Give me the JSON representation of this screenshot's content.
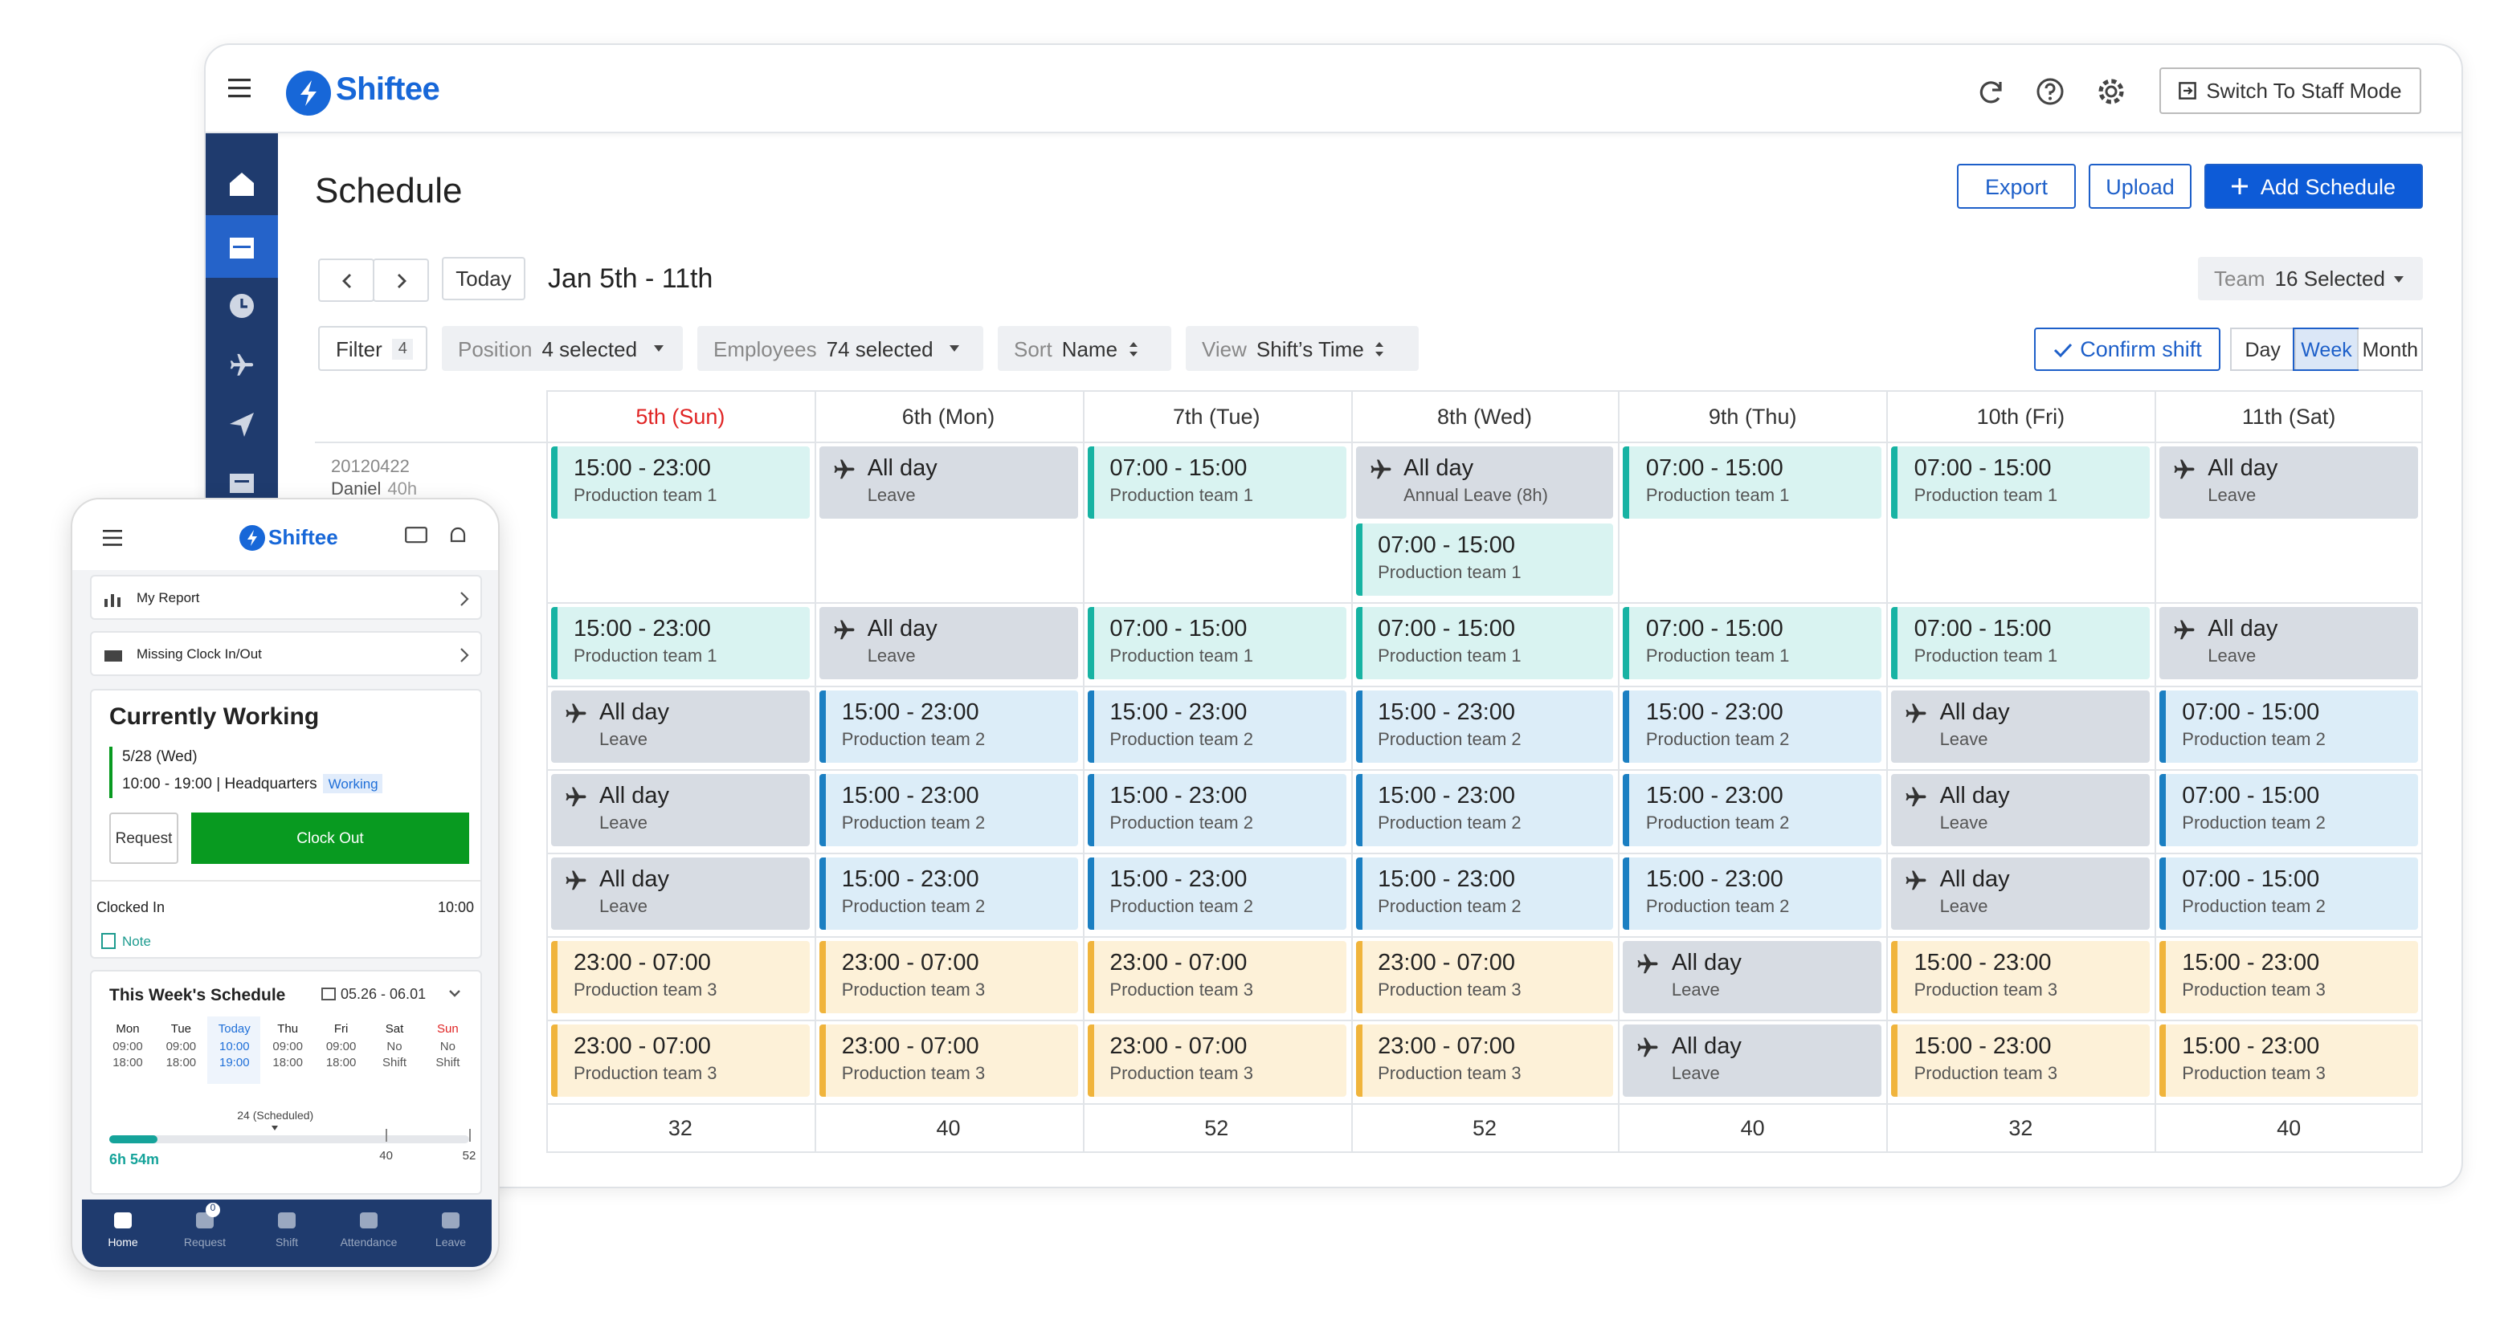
{
  "header": {
    "logo": "Shiftee",
    "switch_mode": "Switch To Staff Mode"
  },
  "page": {
    "title": "Schedule",
    "export": "Export",
    "upload": "Upload",
    "add": "Add Schedule",
    "today": "Today",
    "range": "Jan 5th - 11th",
    "team_label": "Team",
    "team_value": "16 Selected",
    "filters": [
      {
        "label": "Filter",
        "value": "4"
      },
      {
        "label": "Position",
        "value": "4 selected"
      },
      {
        "label": "Employees",
        "value": "74 selected"
      },
      {
        "label": "Sort",
        "value": "Name"
      },
      {
        "label": "View",
        "value": "Shift’s Time"
      }
    ],
    "confirm": "Confirm shift",
    "views": [
      "Day",
      "Week",
      "Month"
    ]
  },
  "schedule": {
    "days": [
      "5th (Sun)",
      "6th (Mon)",
      "7th (Tue)",
      "8th (Wed)",
      "9th (Thu)",
      "10th (Fri)",
      "11th (Sat)"
    ],
    "employee": {
      "id": "20120422",
      "name": "Daniel",
      "hours": "40h"
    },
    "rows": [
      [
        [
          {
            "time": "15:00 - 23:00",
            "label": "Production team 1",
            "color": "#17b3a3",
            "background": "#d9f3f1"
          }
        ],
        [
          {
            "time": "All day",
            "label": "Leave",
            "background": "#d7dce3"
          }
        ],
        [
          {
            "time": "07:00 - 15:00",
            "label": "Production team 1",
            "color": "#17b3a3",
            "background": "#d9f3f1"
          }
        ],
        [
          {
            "time": "All day",
            "label": "Annual Leave (8h)",
            "background": "#d7dce3"
          },
          {
            "time": "07:00 - 15:00",
            "label": "Production team 1",
            "color": "#17b3a3",
            "background": "#d9f3f1"
          }
        ],
        [
          {
            "time": "07:00 - 15:00",
            "label": "Production team 1",
            "color": "#17b3a3",
            "background": "#d9f3f1"
          }
        ],
        [
          {
            "time": "07:00 - 15:00",
            "label": "Production team 1",
            "color": "#17b3a3",
            "background": "#d9f3f1"
          }
        ],
        [
          {
            "time": "All day",
            "label": "Leave",
            "background": "#d7dce3"
          }
        ]
      ],
      [
        [
          {
            "time": "15:00 - 23:00",
            "label": "Production team 1",
            "color": "#17b3a3",
            "background": "#d9f3f1"
          }
        ],
        [
          {
            "time": "All day",
            "label": "Leave",
            "background": "#d7dce3"
          }
        ],
        [
          {
            "time": "07:00 - 15:00",
            "label": "Production team 1",
            "color": "#17b3a3",
            "background": "#d9f3f1"
          }
        ],
        [
          {
            "time": "07:00 - 15:00",
            "label": "Production team 1",
            "color": "#17b3a3",
            "background": "#d9f3f1"
          }
        ],
        [
          {
            "time": "07:00 - 15:00",
            "label": "Production team 1",
            "color": "#17b3a3",
            "background": "#d9f3f1"
          }
        ],
        [
          {
            "time": "07:00 - 15:00",
            "label": "Production team 1",
            "color": "#17b3a3",
            "background": "#d9f3f1"
          }
        ],
        [
          {
            "time": "All day",
            "label": "Leave",
            "background": "#d7dce3"
          }
        ]
      ],
      [
        [
          {
            "time": "All day",
            "label": "Leave",
            "background": "#d7dce3"
          }
        ],
        [
          {
            "time": "15:00 - 23:00",
            "label": "Production team 2",
            "color": "#1b7fc2",
            "background": "#dcedf8"
          }
        ],
        [
          {
            "time": "15:00 - 23:00",
            "label": "Production team 2",
            "color": "#1b7fc2",
            "background": "#dcedf8"
          }
        ],
        [
          {
            "time": "15:00 - 23:00",
            "label": "Production team 2",
            "color": "#1b7fc2",
            "background": "#dcedf8"
          }
        ],
        [
          {
            "time": "15:00 - 23:00",
            "label": "Production team 2",
            "color": "#1b7fc2",
            "background": "#dcedf8"
          }
        ],
        [
          {
            "time": "All day",
            "label": "Leave",
            "background": "#d7dce3"
          }
        ],
        [
          {
            "time": "07:00 - 15:00",
            "label": "Production team 2",
            "color": "#1b7fc2",
            "background": "#dcedf8"
          }
        ]
      ],
      [
        [
          {
            "time": "All day",
            "label": "Leave",
            "background": "#d7dce3"
          }
        ],
        [
          {
            "time": "15:00 - 23:00",
            "label": "Production team 2",
            "color": "#1b7fc2",
            "background": "#dcedf8"
          }
        ],
        [
          {
            "time": "15:00 - 23:00",
            "label": "Production team 2",
            "color": "#1b7fc2",
            "background": "#dcedf8"
          }
        ],
        [
          {
            "time": "15:00 - 23:00",
            "label": "Production team 2",
            "color": "#1b7fc2",
            "background": "#dcedf8"
          }
        ],
        [
          {
            "time": "15:00 - 23:00",
            "label": "Production team 2",
            "color": "#1b7fc2",
            "background": "#dcedf8"
          }
        ],
        [
          {
            "time": "All day",
            "label": "Leave",
            "background": "#d7dce3"
          }
        ],
        [
          {
            "time": "07:00 - 15:00",
            "label": "Production team 2",
            "color": "#1b7fc2",
            "background": "#dcedf8"
          }
        ]
      ],
      [
        [
          {
            "time": "All day",
            "label": "Leave",
            "background": "#d7dce3"
          }
        ],
        [
          {
            "time": "15:00 - 23:00",
            "label": "Production team 2",
            "color": "#1b7fc2",
            "background": "#dcedf8"
          }
        ],
        [
          {
            "time": "15:00 - 23:00",
            "label": "Production team 2",
            "color": "#1b7fc2",
            "background": "#dcedf8"
          }
        ],
        [
          {
            "time": "15:00 - 23:00",
            "label": "Production team 2",
            "color": "#1b7fc2",
            "background": "#dcedf8"
          }
        ],
        [
          {
            "time": "15:00 - 23:00",
            "label": "Production team 2",
            "color": "#1b7fc2",
            "background": "#dcedf8"
          }
        ],
        [
          {
            "time": "All day",
            "label": "Leave",
            "background": "#d7dce3"
          }
        ],
        [
          {
            "time": "07:00 - 15:00",
            "label": "Production team 2",
            "color": "#1b7fc2",
            "background": "#dcedf8"
          }
        ]
      ],
      [
        [
          {
            "time": "23:00 - 07:00",
            "label": "Production team 3",
            "color": "#f0b43c",
            "background": "#fdf1d8"
          }
        ],
        [
          {
            "time": "23:00 - 07:00",
            "label": "Production team 3",
            "color": "#f0b43c",
            "background": "#fdf1d8"
          }
        ],
        [
          {
            "time": "23:00 - 07:00",
            "label": "Production team 3",
            "color": "#f0b43c",
            "background": "#fdf1d8"
          }
        ],
        [
          {
            "time": "23:00 - 07:00",
            "label": "Production team 3",
            "color": "#f0b43c",
            "background": "#fdf1d8"
          }
        ],
        [
          {
            "time": "All day",
            "label": "Leave",
            "background": "#d7dce3"
          }
        ],
        [
          {
            "time": "15:00 - 23:00",
            "label": "Production team 3",
            "color": "#f0b43c",
            "background": "#fdf1d8"
          }
        ],
        [
          {
            "time": "15:00 - 23:00",
            "label": "Production team 3",
            "color": "#f0b43c",
            "background": "#fdf1d8"
          }
        ]
      ],
      [
        [
          {
            "time": "23:00 - 07:00",
            "label": "Production team 3",
            "color": "#f0b43c",
            "background": "#fdf1d8"
          }
        ],
        [
          {
            "time": "23:00 - 07:00",
            "label": "Production team 3",
            "color": "#f0b43c",
            "background": "#fdf1d8"
          }
        ],
        [
          {
            "time": "23:00 - 07:00",
            "label": "Production team 3",
            "color": "#f0b43c",
            "background": "#fdf1d8"
          }
        ],
        [
          {
            "time": "23:00 - 07:00",
            "label": "Production team 3",
            "color": "#f0b43c",
            "background": "#fdf1d8"
          }
        ],
        [
          {
            "time": "All day",
            "label": "Leave",
            "background": "#d7dce3"
          }
        ],
        [
          {
            "time": "15:00 - 23:00",
            "label": "Production team 3",
            "color": "#f0b43c",
            "background": "#fdf1d8"
          }
        ],
        [
          {
            "time": "15:00 - 23:00",
            "label": "Production team 3",
            "color": "#f0b43c",
            "background": "#fdf1d8"
          }
        ]
      ]
    ],
    "totals": [
      32,
      40,
      52,
      52,
      40,
      32,
      40
    ]
  },
  "mobile": {
    "logo": "Shiftee",
    "menu": [
      "My Report",
      "Missing Clock In/Out"
    ],
    "card_title": "Currently Working",
    "date": "5/28 (Wed)",
    "hours": "10:00 - 19:00 | Headquarters",
    "status": "Working",
    "request": "Request",
    "clock_out": "Clock Out",
    "clocked_in_label": "Clocked In",
    "clocked_in_time": "10:00",
    "note": "Note",
    "week_title": "This Week's Schedule",
    "week_range": "05.26 - 06.01",
    "week": [
      {
        "day": "Mon",
        "start": "09:00",
        "end": "18:00"
      },
      {
        "day": "Tue",
        "start": "09:00",
        "end": "18:00"
      },
      {
        "day": "Today",
        "start": "10:00",
        "end": "19:00"
      },
      {
        "day": "Thu",
        "start": "09:00",
        "end": "18:00"
      },
      {
        "day": "Fri",
        "start": "09:00",
        "end": "18:00"
      },
      {
        "day": "Sat",
        "start": "No",
        "end": "Shift"
      },
      {
        "day": "Sun",
        "start": "No",
        "end": "Shift"
      }
    ],
    "scheduled": {
      "value": 24,
      "label": "24 (Scheduled)"
    },
    "worked": {
      "value": 6.9,
      "label": "6h 54m"
    },
    "marks": [
      40,
      52
    ],
    "nav": [
      "Home",
      "Request",
      "Shift",
      "Attendance",
      "Leave"
    ],
    "nav_badge": "0"
  }
}
